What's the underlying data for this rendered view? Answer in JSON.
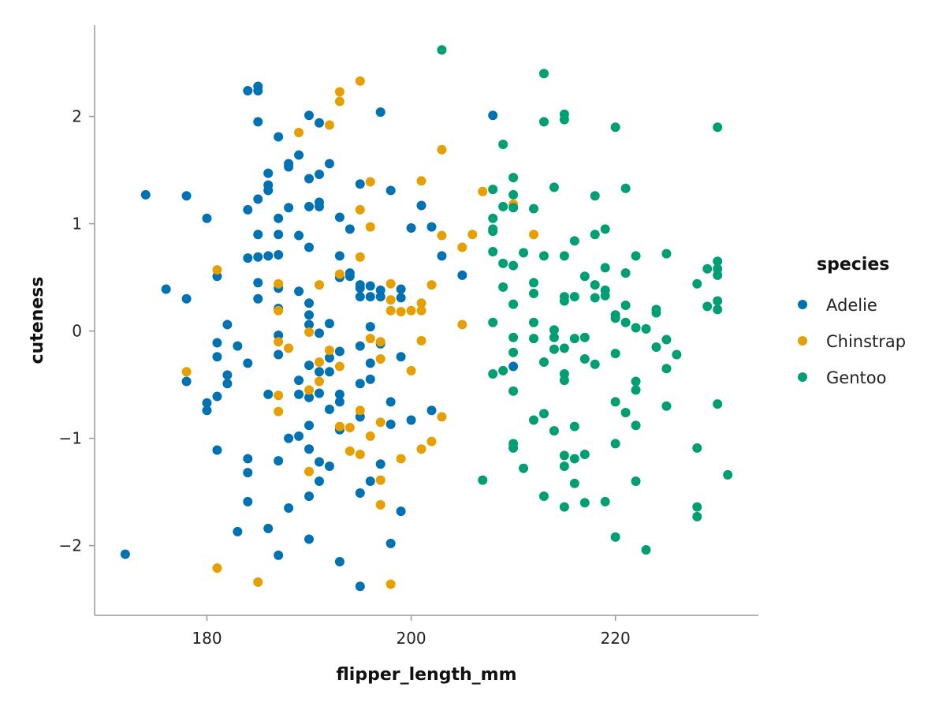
{
  "chart_data": {
    "type": "scatter",
    "title": "",
    "xlabel": "flipper_length_mm",
    "ylabel": "cuteness",
    "xlim": [
      169,
      234
    ],
    "ylim": [
      -2.65,
      2.85
    ],
    "x_ticks": [
      180,
      200,
      220
    ],
    "y_ticks": [
      -2,
      -1,
      0,
      1,
      2
    ],
    "x_tick_labels": [
      "180",
      "200",
      "220"
    ],
    "y_tick_labels": [
      "−2",
      "−1",
      "0",
      "1",
      "2"
    ],
    "grid": false,
    "legend": {
      "title": "species",
      "placement": "right"
    },
    "series": [
      {
        "name": "Adelie",
        "color": "#0072B2",
        "points": [
          [
            172,
            -2.08
          ],
          [
            174,
            1.27
          ],
          [
            176,
            0.39
          ],
          [
            178,
            1.26
          ],
          [
            178,
            0.3
          ],
          [
            178,
            -0.47
          ],
          [
            180,
            1.05
          ],
          [
            180,
            -0.67
          ],
          [
            180,
            -0.74
          ],
          [
            181,
            0.51
          ],
          [
            181,
            -0.11
          ],
          [
            181,
            -0.24
          ],
          [
            181,
            -0.61
          ],
          [
            181,
            -1.11
          ],
          [
            182,
            0.06
          ],
          [
            182,
            -0.41
          ],
          [
            182,
            -0.49
          ],
          [
            183,
            -0.14
          ],
          [
            183,
            -1.87
          ],
          [
            184,
            2.24
          ],
          [
            184,
            1.13
          ],
          [
            184,
            0.68
          ],
          [
            184,
            -0.3
          ],
          [
            184,
            -1.19
          ],
          [
            184,
            -1.32
          ],
          [
            184,
            -1.59
          ],
          [
            185,
            2.28
          ],
          [
            185,
            2.24
          ],
          [
            185,
            1.95
          ],
          [
            185,
            1.23
          ],
          [
            185,
            0.9
          ],
          [
            185,
            0.69
          ],
          [
            185,
            0.45
          ],
          [
            185,
            0.3
          ],
          [
            186,
            1.47
          ],
          [
            186,
            1.36
          ],
          [
            186,
            1.31
          ],
          [
            186,
            0.7
          ],
          [
            186,
            -0.59
          ],
          [
            186,
            -1.84
          ],
          [
            187,
            1.81
          ],
          [
            187,
            1.05
          ],
          [
            187,
            0.9
          ],
          [
            187,
            0.71
          ],
          [
            187,
            0.4
          ],
          [
            187,
            0.21
          ],
          [
            187,
            -0.04
          ],
          [
            187,
            -0.22
          ],
          [
            187,
            -1.21
          ],
          [
            187,
            -2.09
          ],
          [
            188,
            1.56
          ],
          [
            188,
            1.53
          ],
          [
            188,
            1.15
          ],
          [
            188,
            -1.0
          ],
          [
            188,
            -1.65
          ],
          [
            189,
            1.64
          ],
          [
            189,
            0.89
          ],
          [
            189,
            0.37
          ],
          [
            189,
            -0.46
          ],
          [
            189,
            -0.59
          ],
          [
            189,
            -0.98
          ],
          [
            190,
            2.01
          ],
          [
            190,
            1.42
          ],
          [
            190,
            1.16
          ],
          [
            190,
            0.78
          ],
          [
            190,
            0.26
          ],
          [
            190,
            0.15
          ],
          [
            190,
            0.06
          ],
          [
            190,
            -0.32
          ],
          [
            190,
            -0.62
          ],
          [
            190,
            -0.88
          ],
          [
            190,
            -1.1
          ],
          [
            190,
            -1.54
          ],
          [
            190,
            -1.94
          ],
          [
            191,
            1.94
          ],
          [
            191,
            1.46
          ],
          [
            191,
            1.2
          ],
          [
            191,
            1.16
          ],
          [
            191,
            -0.02
          ],
          [
            191,
            -0.38
          ],
          [
            191,
            -0.58
          ],
          [
            191,
            -1.22
          ],
          [
            191,
            -1.4
          ],
          [
            192,
            1.56
          ],
          [
            192,
            0.07
          ],
          [
            192,
            -0.25
          ],
          [
            192,
            -0.38
          ],
          [
            192,
            -0.73
          ],
          [
            192,
            -1.26
          ],
          [
            193,
            1.06
          ],
          [
            193,
            0.7
          ],
          [
            193,
            0.5
          ],
          [
            193,
            -0.19
          ],
          [
            193,
            -0.59
          ],
          [
            193,
            -0.66
          ],
          [
            193,
            -0.92
          ],
          [
            193,
            -2.15
          ],
          [
            194,
            0.95
          ],
          [
            194,
            0.54
          ],
          [
            194,
            0.51
          ],
          [
            195,
            1.37
          ],
          [
            195,
            0.43
          ],
          [
            195,
            0.4
          ],
          [
            195,
            0.32
          ],
          [
            195,
            -0.14
          ],
          [
            195,
            -0.49
          ],
          [
            195,
            -0.8
          ],
          [
            195,
            -1.51
          ],
          [
            195,
            -2.38
          ],
          [
            196,
            0.42
          ],
          [
            196,
            0.32
          ],
          [
            196,
            0.04
          ],
          [
            196,
            -0.3
          ],
          [
            196,
            -0.45
          ],
          [
            196,
            -1.4
          ],
          [
            197,
            2.04
          ],
          [
            197,
            0.38
          ],
          [
            197,
            0.32
          ],
          [
            197,
            -0.12
          ],
          [
            197,
            -1.24
          ],
          [
            198,
            1.31
          ],
          [
            198,
            -0.66
          ],
          [
            198,
            -0.87
          ],
          [
            198,
            -1.98
          ],
          [
            199,
            0.39
          ],
          [
            199,
            0.31
          ],
          [
            199,
            -0.24
          ],
          [
            199,
            -1.68
          ],
          [
            200,
            0.96
          ],
          [
            200,
            -0.83
          ],
          [
            201,
            1.17
          ],
          [
            202,
            0.97
          ],
          [
            202,
            -0.74
          ],
          [
            203,
            0.7
          ],
          [
            205,
            0.52
          ],
          [
            208,
            2.01
          ],
          [
            210,
            -0.33
          ]
        ]
      },
      {
        "name": "Chinstrap",
        "color": "#E69F00",
        "points": [
          [
            178,
            -0.38
          ],
          [
            181,
            0.57
          ],
          [
            181,
            -2.21
          ],
          [
            185,
            -2.34
          ],
          [
            187,
            0.44
          ],
          [
            187,
            0.19
          ],
          [
            187,
            -0.1
          ],
          [
            187,
            -0.6
          ],
          [
            187,
            -0.75
          ],
          [
            188,
            -0.16
          ],
          [
            189,
            1.85
          ],
          [
            190,
            -0.01
          ],
          [
            190,
            -0.55
          ],
          [
            190,
            -1.31
          ],
          [
            191,
            0.43
          ],
          [
            191,
            -0.29
          ],
          [
            191,
            -0.47
          ],
          [
            192,
            1.92
          ],
          [
            192,
            -0.18
          ],
          [
            193,
            2.23
          ],
          [
            193,
            2.14
          ],
          [
            193,
            0.53
          ],
          [
            193,
            -0.33
          ],
          [
            193,
            -0.89
          ],
          [
            194,
            -0.9
          ],
          [
            194,
            -1.12
          ],
          [
            195,
            2.33
          ],
          [
            195,
            1.13
          ],
          [
            195,
            0.69
          ],
          [
            195,
            -0.74
          ],
          [
            195,
            -1.15
          ],
          [
            196,
            1.39
          ],
          [
            196,
            0.97
          ],
          [
            196,
            -0.07
          ],
          [
            196,
            -0.98
          ],
          [
            197,
            -0.1
          ],
          [
            197,
            -0.26
          ],
          [
            197,
            -0.85
          ],
          [
            197,
            -1.39
          ],
          [
            197,
            -1.62
          ],
          [
            198,
            0.44
          ],
          [
            198,
            0.29
          ],
          [
            198,
            0.19
          ],
          [
            198,
            -2.36
          ],
          [
            199,
            0.18
          ],
          [
            199,
            -1.19
          ],
          [
            200,
            0.19
          ],
          [
            200,
            -0.37
          ],
          [
            201,
            1.4
          ],
          [
            201,
            0.26
          ],
          [
            201,
            0.19
          ],
          [
            201,
            -0.09
          ],
          [
            201,
            -1.1
          ],
          [
            202,
            0.43
          ],
          [
            202,
            -1.03
          ],
          [
            203,
            1.69
          ],
          [
            203,
            0.89
          ],
          [
            203,
            -0.8
          ],
          [
            205,
            0.78
          ],
          [
            205,
            0.06
          ],
          [
            206,
            0.9
          ],
          [
            207,
            1.3
          ],
          [
            210,
            1.18
          ],
          [
            212,
            0.9
          ]
        ]
      },
      {
        "name": "Gentoo",
        "color": "#009E73",
        "points": [
          [
            203,
            2.62
          ],
          [
            207,
            -1.39
          ],
          [
            208,
            1.32
          ],
          [
            208,
            1.05
          ],
          [
            208,
            0.95
          ],
          [
            208,
            0.93
          ],
          [
            208,
            0.74
          ],
          [
            208,
            0.08
          ],
          [
            208,
            -0.4
          ],
          [
            209,
            1.74
          ],
          [
            209,
            1.16
          ],
          [
            209,
            0.63
          ],
          [
            209,
            0.41
          ],
          [
            209,
            -0.37
          ],
          [
            210,
            1.43
          ],
          [
            210,
            1.27
          ],
          [
            210,
            1.15
          ],
          [
            210,
            0.61
          ],
          [
            210,
            0.25
          ],
          [
            210,
            -0.06
          ],
          [
            210,
            -0.2
          ],
          [
            210,
            -0.56
          ],
          [
            210,
            -1.05
          ],
          [
            210,
            -1.09
          ],
          [
            211,
            0.73
          ],
          [
            211,
            -1.28
          ],
          [
            212,
            1.14
          ],
          [
            212,
            0.45
          ],
          [
            212,
            0.35
          ],
          [
            212,
            0.08
          ],
          [
            212,
            -0.07
          ],
          [
            212,
            -0.83
          ],
          [
            213,
            2.4
          ],
          [
            213,
            1.95
          ],
          [
            213,
            0.7
          ],
          [
            213,
            -0.29
          ],
          [
            213,
            -0.77
          ],
          [
            213,
            -1.54
          ],
          [
            214,
            1.34
          ],
          [
            214,
            0.01
          ],
          [
            214,
            -0.06
          ],
          [
            214,
            -0.17
          ],
          [
            214,
            -0.93
          ],
          [
            215,
            2.02
          ],
          [
            215,
            1.97
          ],
          [
            215,
            0.7
          ],
          [
            215,
            0.32
          ],
          [
            215,
            0.28
          ],
          [
            215,
            -0.16
          ],
          [
            215,
            -0.4
          ],
          [
            215,
            -0.46
          ],
          [
            215,
            -1.16
          ],
          [
            215,
            -1.26
          ],
          [
            215,
            -1.64
          ],
          [
            216,
            0.84
          ],
          [
            216,
            0.32
          ],
          [
            216,
            -0.07
          ],
          [
            216,
            -0.89
          ],
          [
            216,
            -1.19
          ],
          [
            216,
            -1.42
          ],
          [
            217,
            0.51
          ],
          [
            217,
            -0.06
          ],
          [
            217,
            -0.26
          ],
          [
            217,
            -1.15
          ],
          [
            217,
            -1.6
          ],
          [
            218,
            1.26
          ],
          [
            218,
            0.9
          ],
          [
            218,
            0.43
          ],
          [
            218,
            0.31
          ],
          [
            218,
            -0.31
          ],
          [
            219,
            0.95
          ],
          [
            219,
            0.59
          ],
          [
            219,
            0.38
          ],
          [
            219,
            0.33
          ],
          [
            219,
            -1.59
          ],
          [
            220,
            1.9
          ],
          [
            220,
            0.15
          ],
          [
            220,
            0.12
          ],
          [
            220,
            -0.21
          ],
          [
            220,
            -0.66
          ],
          [
            220,
            -1.05
          ],
          [
            220,
            -1.92
          ],
          [
            221,
            1.33
          ],
          [
            221,
            0.54
          ],
          [
            221,
            0.24
          ],
          [
            221,
            0.08
          ],
          [
            221,
            -0.76
          ],
          [
            222,
            0.7
          ],
          [
            222,
            0.03
          ],
          [
            222,
            -0.47
          ],
          [
            222,
            -0.55
          ],
          [
            222,
            -0.88
          ],
          [
            222,
            -1.4
          ],
          [
            223,
            0.02
          ],
          [
            223,
            -2.04
          ],
          [
            224,
            0.2
          ],
          [
            224,
            0.17
          ],
          [
            224,
            -0.15
          ],
          [
            225,
            0.72
          ],
          [
            225,
            -0.08
          ],
          [
            225,
            -0.35
          ],
          [
            225,
            -0.7
          ],
          [
            226,
            -0.22
          ],
          [
            228,
            0.44
          ],
          [
            228,
            -1.09
          ],
          [
            228,
            -1.64
          ],
          [
            228,
            -1.73
          ],
          [
            229,
            0.58
          ],
          [
            229,
            0.23
          ],
          [
            230,
            1.9
          ],
          [
            230,
            0.65
          ],
          [
            230,
            0.58
          ],
          [
            230,
            0.52
          ],
          [
            230,
            0.28
          ],
          [
            230,
            0.2
          ],
          [
            230,
            -0.68
          ],
          [
            231,
            -1.34
          ]
        ]
      }
    ]
  }
}
